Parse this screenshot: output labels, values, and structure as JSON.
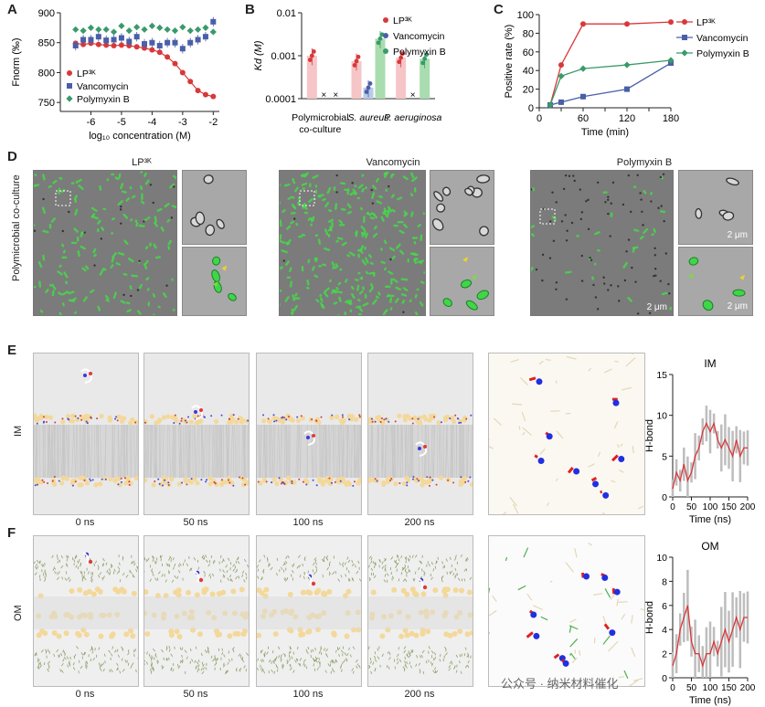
{
  "panels": {
    "A": "A",
    "B": "B",
    "C": "C",
    "D": "D",
    "E": "E",
    "F": "F"
  },
  "series_names": {
    "lp": "LP³ᴷ",
    "vanco": "Vancomycin",
    "poly": "Polymyxin B"
  },
  "colors": {
    "lp": "#d9383a",
    "vanco": "#4a5fa8",
    "poly": "#3a9a6a",
    "lp_bar": "#f6c5c7",
    "vanco_bar": "#b9cbe8",
    "poly_bar": "#a9dcae"
  },
  "chart_data": [
    {
      "id": "A",
      "type": "scatter",
      "ylabel": "Fnorm (‰)",
      "xlabel": "log₁₀ concentration (M)",
      "xlim": [
        -7,
        -1.8
      ],
      "ylim": [
        735,
        900
      ],
      "xticks": [
        "-6",
        "-5",
        "-4",
        "-3",
        "-2"
      ],
      "yticks": [
        "750",
        "800",
        "850",
        "900"
      ],
      "x": [
        -6.5,
        -6.25,
        -6.0,
        -5.75,
        -5.5,
        -5.25,
        -5.0,
        -4.75,
        -4.5,
        -4.25,
        -4.0,
        -3.75,
        -3.5,
        -3.25,
        -3.0,
        -2.75,
        -2.5,
        -2.25,
        -2.0
      ],
      "series": [
        {
          "name": "LP³ᴷ",
          "values": [
            849,
            847,
            849,
            847,
            846,
            845,
            846,
            845,
            843,
            841,
            838,
            834,
            826,
            815,
            800,
            785,
            770,
            763,
            760
          ]
        },
        {
          "name": "Vancomycin",
          "values": [
            845,
            855,
            855,
            860,
            854,
            855,
            858,
            852,
            860,
            848,
            850,
            845,
            850,
            850,
            840,
            850,
            855,
            860,
            885
          ]
        },
        {
          "name": "Polymyxin B",
          "values": [
            872,
            870,
            875,
            872,
            872,
            868,
            878,
            870,
            876,
            872,
            878,
            875,
            872,
            870,
            876,
            870,
            872,
            875,
            868
          ]
        }
      ],
      "legend": "lower-left"
    },
    {
      "id": "B",
      "type": "bar",
      "ylabel": "Kd (M)",
      "scale": "log",
      "ylim": [
        0.0001,
        0.01
      ],
      "yticks": [
        "0.01",
        "0.001",
        "0.0001"
      ],
      "categories": [
        "Polymicrobial co-culture",
        "S. aureus",
        "P. aeruginosa"
      ],
      "series": [
        {
          "name": "LP³ᴷ",
          "values": [
            0.001,
            0.00075,
            0.0009
          ]
        },
        {
          "name": "Vancomycin",
          "values": [
            null,
            0.00018,
            null
          ]
        },
        {
          "name": "Polymyxin B",
          "values": [
            null,
            0.0025,
            0.00085
          ]
        }
      ],
      "not_detected_marker": "×",
      "legend": "top-right"
    },
    {
      "id": "C",
      "type": "line",
      "ylabel": "Positive rate (%)",
      "xlabel": "Time (min)",
      "xlim": [
        0,
        180
      ],
      "ylim": [
        0,
        100
      ],
      "xticks": [
        "0",
        "30",
        "60",
        "90",
        "120",
        "150",
        "180"
      ],
      "yticks": [
        "0",
        "20",
        "40",
        "60",
        "80",
        "100"
      ],
      "x": [
        15,
        30,
        60,
        120,
        180
      ],
      "series": [
        {
          "name": "LP³ᴷ",
          "values": [
            3,
            46,
            90,
            90,
            92
          ]
        },
        {
          "name": "Vancomycin",
          "values": [
            3,
            6,
            12,
            20,
            48
          ]
        },
        {
          "name": "Polymyxin B",
          "values": [
            3,
            34,
            42,
            46,
            51
          ]
        }
      ],
      "legend": "top-right"
    },
    {
      "id": "E-hbond",
      "type": "line",
      "title": "IM",
      "ylabel": "H-bond",
      "xlabel": "Time (ns)",
      "xlim": [
        0,
        200
      ],
      "ylim": [
        0,
        15
      ],
      "xticks": [
        "0",
        "50",
        "100",
        "150",
        "200"
      ],
      "yticks": [
        "0",
        "5",
        "10",
        "15"
      ],
      "x": [
        0,
        10,
        20,
        30,
        40,
        50,
        60,
        70,
        80,
        90,
        100,
        110,
        120,
        130,
        140,
        150,
        160,
        170,
        180,
        190,
        200
      ],
      "series": [
        {
          "name": "",
          "values": [
            1,
            3,
            2,
            4,
            2,
            3,
            5,
            6,
            8,
            9,
            8,
            9,
            7,
            6,
            7,
            6,
            5,
            7,
            5,
            6,
            6
          ]
        }
      ]
    },
    {
      "id": "F-hbond",
      "type": "line",
      "title": "OM",
      "ylabel": "H-bond",
      "xlabel": "Time (ns)",
      "xlim": [
        0,
        200
      ],
      "ylim": [
        0,
        10
      ],
      "xticks": [
        "0",
        "50",
        "100",
        "150",
        "200"
      ],
      "yticks": [
        "0",
        "2",
        "4",
        "6",
        "8",
        "10"
      ],
      "x": [
        0,
        10,
        20,
        30,
        40,
        50,
        60,
        70,
        80,
        90,
        100,
        110,
        120,
        130,
        140,
        150,
        160,
        170,
        180,
        190,
        200
      ],
      "series": [
        {
          "name": "",
          "values": [
            1,
            2,
            4,
            5,
            6,
            3,
            2,
            2,
            1,
            2,
            2,
            3,
            2,
            3,
            4,
            3,
            4,
            5,
            4,
            5,
            5
          ]
        }
      ]
    }
  ],
  "panelD": {
    "side_label": "Polymicrobial co-culture",
    "titles": [
      "LP³ᴷ",
      "Vancomycin",
      "Polymyxin B"
    ],
    "scale": "2 μm"
  },
  "panelE": {
    "side_label": "IM",
    "times": [
      "0 ns",
      "50 ns",
      "100 ns",
      "200 ns"
    ]
  },
  "panelF": {
    "side_label": "OM",
    "times": [
      "0 ns",
      "50 ns",
      "100 ns",
      "200 ns"
    ]
  },
  "watermark": "公众号 · 纳米材料催化"
}
